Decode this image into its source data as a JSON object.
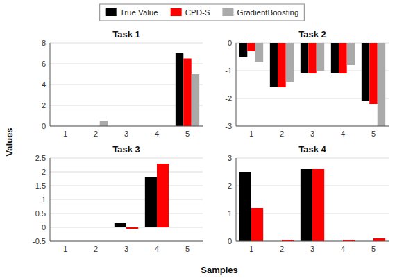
{
  "chart_data": [
    {
      "type": "bar",
      "title": "Task 1",
      "y_label": "Values",
      "legend": "top",
      "categories": [
        "1",
        "2",
        "3",
        "4",
        "5"
      ],
      "series": [
        {
          "name": "True Value",
          "color": "#000000",
          "values": [
            0.0,
            0.0,
            0.0,
            0.0,
            7.0
          ]
        },
        {
          "name": "CPD-S",
          "color": "#ff0000",
          "values": [
            0.0,
            0.0,
            0.0,
            0.0,
            6.5
          ]
        },
        {
          "name": "GradientBoosting",
          "color": "#aaaaaa",
          "values": [
            0.0,
            0.5,
            0.0,
            0.0,
            5.0
          ]
        }
      ],
      "ylim": [
        0,
        8
      ],
      "yticks": [
        0,
        2,
        4,
        6,
        8
      ],
      "grid": true
    },
    {
      "type": "bar",
      "title": "Task 2",
      "categories": [
        "1",
        "2",
        "3",
        "4",
        "5"
      ],
      "series": [
        {
          "name": "True Value",
          "color": "#000000",
          "values": [
            -0.5,
            -1.6,
            -1.1,
            -1.1,
            -2.1
          ]
        },
        {
          "name": "CPD-S",
          "color": "#ff0000",
          "values": [
            -0.3,
            -1.6,
            -1.1,
            -1.1,
            -2.2
          ]
        },
        {
          "name": "GradientBoosting",
          "color": "#aaaaaa",
          "values": [
            -0.7,
            -1.4,
            -1.0,
            -0.8,
            -3.0
          ]
        }
      ],
      "ylim": [
        -3,
        0
      ],
      "yticks": [
        -3,
        -2,
        -1,
        0
      ],
      "grid": true
    },
    {
      "type": "bar",
      "title": "Task 3",
      "x_label": "Samples",
      "categories": [
        "1",
        "2",
        "3",
        "4",
        "5"
      ],
      "series": [
        {
          "name": "True Value",
          "color": "#000000",
          "values": [
            0.0,
            0.0,
            0.15,
            1.8,
            0.0
          ]
        },
        {
          "name": "CPD-S",
          "color": "#ff0000",
          "values": [
            0.0,
            0.0,
            -0.05,
            2.3,
            0.0
          ]
        }
      ],
      "ylim": [
        -0.5,
        2.5
      ],
      "yticks": [
        -0.5,
        0,
        0.5,
        1,
        1.5,
        2,
        2.5
      ],
      "grid": true
    },
    {
      "type": "bar",
      "title": "Task 4",
      "categories": [
        "1",
        "2",
        "3",
        "4",
        "5"
      ],
      "series": [
        {
          "name": "True Value",
          "color": "#000000",
          "values": [
            2.5,
            0.0,
            2.6,
            0.0,
            0.0
          ]
        },
        {
          "name": "CPD-S",
          "color": "#ff0000",
          "values": [
            1.2,
            0.05,
            2.6,
            0.05,
            0.1
          ]
        }
      ],
      "ylim": [
        0,
        3
      ],
      "yticks": [
        0,
        1,
        2,
        3
      ],
      "grid": true
    }
  ]
}
